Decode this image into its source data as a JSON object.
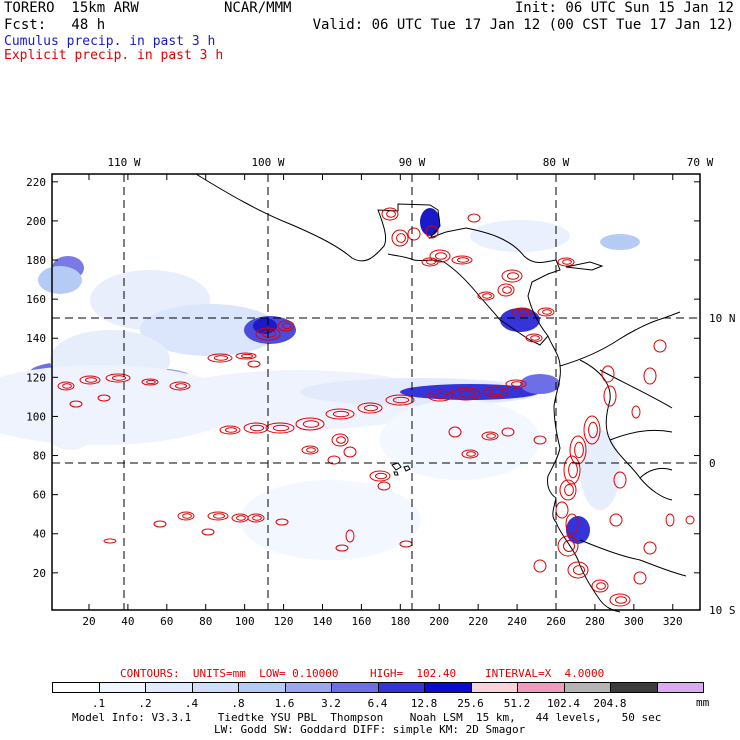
{
  "header": {
    "model": "TORERO  15km ARW",
    "org": "NCAR/MMM",
    "init": "Init: 06 UTC Sun 15 Jan 12",
    "fcst": "Fcst:   48 h",
    "valid": "Valid: 06 UTC Tue 17 Jan 12 (00 CST Tue 17 Jan 12)",
    "legend_cumulus": "Cumulus precip. in past 3 h",
    "legend_explicit": "Explicit precip. in past 3 h"
  },
  "colors": {
    "cumulus": "#1a1ac8",
    "explicit": "#e00000",
    "coast": "#000000"
  },
  "map": {
    "lon_labels": [
      "110 W",
      "100 W",
      "90 W",
      "80 W",
      "70 W"
    ],
    "lat_labels": [
      "10 N",
      "0",
      "10 S"
    ],
    "x_ticks": [
      "20",
      "40",
      "60",
      "80",
      "100",
      "120",
      "140",
      "160",
      "180",
      "200",
      "220",
      "240",
      "260",
      "280",
      "300",
      "320"
    ],
    "y_ticks": [
      "20",
      "40",
      "60",
      "80",
      "100",
      "120",
      "140",
      "160",
      "180",
      "200",
      "220"
    ],
    "x_range": [
      1,
      334
    ],
    "y_range": [
      1,
      224
    ]
  },
  "contour_info": {
    "contours": "CONTOURS:  UNITS=mm  LOW= 0.10000",
    "high": "HIGH=  102.40",
    "interval": "INTERVAL=X  4.0000"
  },
  "colorbar": {
    "labels": [
      ".1",
      ".2",
      ".4",
      ".8",
      "1.6",
      "3.2",
      "6.4",
      "12.8",
      "25.6",
      "51.2",
      "102.4",
      "204.8"
    ],
    "units": "mm",
    "colors": [
      "#ffffff",
      "#f0f5ff",
      "#e1ebff",
      "#cfdffa",
      "#b5cbf5",
      "#9aa6ee",
      "#6e6ee6",
      "#3434d8",
      "#0a0ad2",
      "#fad2dc",
      "#f09cbe",
      "#b4b4b4",
      "#3c3c3c",
      "#dcaaf5"
    ]
  },
  "model_info": {
    "line1": "Model Info: V3.3.1    Tiedtke YSU PBL  Thompson    Noah LSM  15 km,   44 levels,   50 sec",
    "line2": "LW: Godd SW: Goddard DIFF: simple KM: 2D Smagor"
  }
}
